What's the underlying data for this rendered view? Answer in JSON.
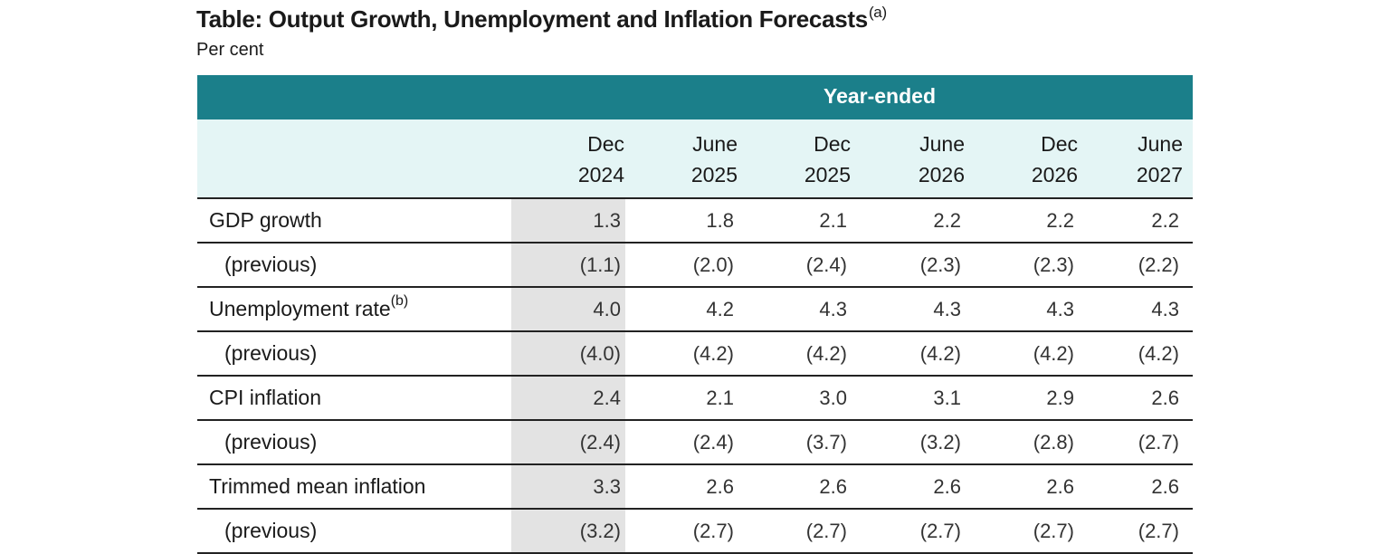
{
  "title": "Table: Output Growth, Unemployment and Inflation Forecasts",
  "title_note": "(a)",
  "subtitle": "Per cent",
  "band_label": "Year-ended",
  "columns": [
    {
      "month": "Dec",
      "year": "2024"
    },
    {
      "month": "June",
      "year": "2025"
    },
    {
      "month": "Dec",
      "year": "2025"
    },
    {
      "month": "June",
      "year": "2026"
    },
    {
      "month": "Dec",
      "year": "2026"
    },
    {
      "month": "June",
      "year": "2027"
    }
  ],
  "rows": [
    {
      "label": "GDP growth",
      "note": "",
      "values": [
        "1.3",
        "1.8",
        "2.1",
        "2.2",
        "2.2",
        "2.2"
      ]
    },
    {
      "label": "(previous)",
      "note": "",
      "values": [
        "(1.1)",
        "(2.0)",
        "(2.4)",
        "(2.3)",
        "(2.3)",
        "(2.2)"
      ]
    },
    {
      "label": "Unemployment rate",
      "note": "(b)",
      "values": [
        "4.0",
        "4.2",
        "4.3",
        "4.3",
        "4.3",
        "4.3"
      ]
    },
    {
      "label": "(previous)",
      "note": "",
      "values": [
        "(4.0)",
        "(4.2)",
        "(4.2)",
        "(4.2)",
        "(4.2)",
        "(4.2)"
      ]
    },
    {
      "label": "CPI inflation",
      "note": "",
      "values": [
        "2.4",
        "2.1",
        "3.0",
        "3.1",
        "2.9",
        "2.6"
      ]
    },
    {
      "label": "(previous)",
      "note": "",
      "values": [
        "(2.4)",
        "(2.4)",
        "(3.7)",
        "(3.2)",
        "(2.8)",
        "(2.7)"
      ]
    },
    {
      "label": "Trimmed mean inflation",
      "note": "",
      "values": [
        "3.3",
        "2.6",
        "2.6",
        "2.6",
        "2.6",
        "2.6"
      ]
    },
    {
      "label": "(previous)",
      "note": "",
      "values": [
        "(3.2)",
        "(2.7)",
        "(2.7)",
        "(2.7)",
        "(2.7)",
        "(2.7)"
      ]
    }
  ],
  "colors": {
    "band": "#1b7f8a",
    "header_bg": "#e4f5f5",
    "shade": "#e3e3e3"
  }
}
